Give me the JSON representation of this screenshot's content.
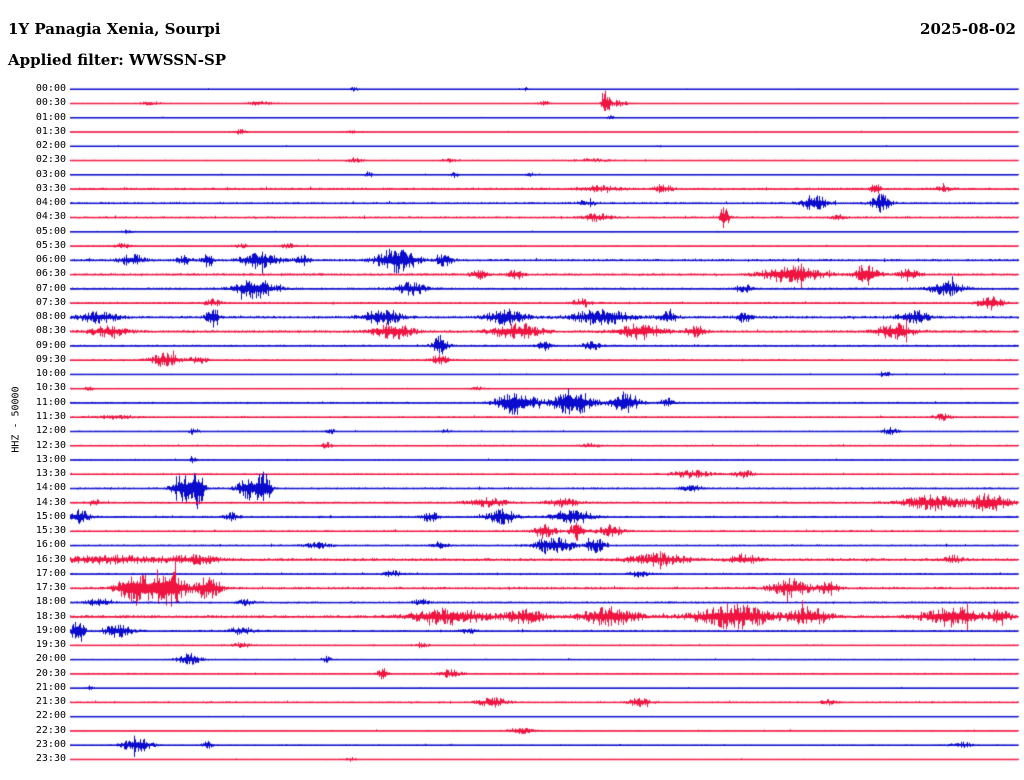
{
  "chart_data": {
    "type": "line",
    "subtype": "helicorder-seismogram",
    "title": "1Y Panagia Xenia, Sourpi",
    "date": "2025-08-02",
    "filter_label": "Applied filter: WWSSN-SP",
    "ylabel": "HHZ - 50000",
    "row_minutes": 30,
    "x_range_minutes": [
      0,
      30
    ],
    "grid": false,
    "legend": "none",
    "palette": {
      "blue": "#0b0bcd",
      "red": "#f01441"
    },
    "rows": [
      {
        "t": "00:00",
        "c": "blue",
        "base": 0.5,
        "bursts": [
          [
            0.3,
            0.004,
            2.5
          ],
          [
            0.48,
            0.003,
            2.0
          ]
        ]
      },
      {
        "t": "00:30",
        "c": "red",
        "base": 0.6,
        "bursts": [
          [
            0.085,
            0.01,
            2.0
          ],
          [
            0.2,
            0.015,
            2.0
          ],
          [
            0.5,
            0.006,
            2.5
          ],
          [
            0.565,
            0.004,
            13.0
          ],
          [
            0.578,
            0.01,
            3.0
          ]
        ]
      },
      {
        "t": "01:00",
        "c": "blue",
        "base": 0.5,
        "bursts": [
          [
            0.57,
            0.004,
            2.0
          ]
        ]
      },
      {
        "t": "01:30",
        "c": "red",
        "base": 0.6,
        "bursts": [
          [
            0.18,
            0.008,
            2.5
          ],
          [
            0.3,
            0.01,
            1.5
          ]
        ]
      },
      {
        "t": "02:00",
        "c": "blue",
        "base": 0.5,
        "bursts": [
          [
            0.62,
            0.005,
            1.5
          ]
        ]
      },
      {
        "t": "02:30",
        "c": "red",
        "base": 0.7,
        "bursts": [
          [
            0.3,
            0.008,
            2.5
          ],
          [
            0.4,
            0.008,
            2.0
          ],
          [
            0.55,
            0.02,
            1.5
          ]
        ]
      },
      {
        "t": "03:00",
        "c": "blue",
        "base": 0.6,
        "bursts": [
          [
            0.315,
            0.004,
            3.5
          ],
          [
            0.405,
            0.004,
            3.0
          ],
          [
            0.485,
            0.004,
            2.5
          ]
        ]
      },
      {
        "t": "03:30",
        "c": "red",
        "base": 1.2,
        "bursts": [
          [
            0.56,
            0.02,
            3.0
          ],
          [
            0.625,
            0.01,
            4.0
          ],
          [
            0.85,
            0.005,
            7.0
          ],
          [
            0.92,
            0.01,
            2.5
          ]
        ]
      },
      {
        "t": "04:00",
        "c": "blue",
        "base": 1.1,
        "bursts": [
          [
            0.545,
            0.01,
            2.5
          ],
          [
            0.785,
            0.012,
            9.0
          ],
          [
            0.855,
            0.01,
            9.0
          ]
        ]
      },
      {
        "t": "04:30",
        "c": "red",
        "base": 1.0,
        "bursts": [
          [
            0.555,
            0.015,
            4.0
          ],
          [
            0.69,
            0.005,
            11.0
          ],
          [
            0.81,
            0.008,
            2.5
          ]
        ]
      },
      {
        "t": "05:00",
        "c": "blue",
        "base": 0.55,
        "bursts": [
          [
            0.06,
            0.006,
            2.0
          ]
        ]
      },
      {
        "t": "05:30",
        "c": "red",
        "base": 0.7,
        "bursts": [
          [
            0.055,
            0.008,
            3.0
          ],
          [
            0.18,
            0.008,
            2.0
          ],
          [
            0.23,
            0.008,
            2.5
          ]
        ]
      },
      {
        "t": "06:00",
        "c": "blue",
        "base": 1.2,
        "bursts": [
          [
            0.065,
            0.012,
            6.0
          ],
          [
            0.12,
            0.008,
            4.0
          ],
          [
            0.145,
            0.006,
            8.0
          ],
          [
            0.2,
            0.018,
            9.0
          ],
          [
            0.245,
            0.008,
            5.0
          ],
          [
            0.345,
            0.02,
            13.0
          ],
          [
            0.395,
            0.008,
            6.0
          ]
        ]
      },
      {
        "t": "06:30",
        "c": "red",
        "base": 1.2,
        "bursts": [
          [
            0.43,
            0.008,
            5.0
          ],
          [
            0.47,
            0.008,
            5.0
          ],
          [
            0.76,
            0.03,
            9.0
          ],
          [
            0.84,
            0.012,
            11.0
          ],
          [
            0.885,
            0.01,
            7.0
          ]
        ]
      },
      {
        "t": "07:00",
        "c": "blue",
        "base": 1.1,
        "bursts": [
          [
            0.195,
            0.02,
            10.0
          ],
          [
            0.36,
            0.015,
            7.0
          ],
          [
            0.71,
            0.008,
            4.0
          ],
          [
            0.925,
            0.018,
            7.0
          ]
        ]
      },
      {
        "t": "07:30",
        "c": "red",
        "base": 1.0,
        "bursts": [
          [
            0.15,
            0.008,
            4.0
          ],
          [
            0.54,
            0.01,
            4.0
          ],
          [
            0.97,
            0.012,
            8.0
          ]
        ]
      },
      {
        "t": "08:00",
        "c": "blue",
        "base": 1.3,
        "bursts": [
          [
            0.03,
            0.02,
            6.0
          ],
          [
            0.15,
            0.006,
            12.0
          ],
          [
            0.33,
            0.02,
            8.0
          ],
          [
            0.46,
            0.02,
            8.0
          ],
          [
            0.56,
            0.03,
            8.0
          ],
          [
            0.63,
            0.01,
            6.0
          ],
          [
            0.71,
            0.008,
            5.0
          ],
          [
            0.89,
            0.015,
            7.0
          ]
        ]
      },
      {
        "t": "08:30",
        "c": "red",
        "base": 1.3,
        "bursts": [
          [
            0.04,
            0.02,
            5.0
          ],
          [
            0.34,
            0.02,
            8.0
          ],
          [
            0.47,
            0.025,
            8.0
          ],
          [
            0.6,
            0.025,
            8.0
          ],
          [
            0.66,
            0.01,
            6.0
          ],
          [
            0.87,
            0.02,
            8.0
          ]
        ]
      },
      {
        "t": "09:00",
        "c": "blue",
        "base": 1.0,
        "bursts": [
          [
            0.39,
            0.008,
            10.0
          ],
          [
            0.5,
            0.008,
            5.0
          ],
          [
            0.55,
            0.01,
            4.0
          ]
        ]
      },
      {
        "t": "09:30",
        "c": "red",
        "base": 0.9,
        "bursts": [
          [
            0.1,
            0.015,
            7.0
          ],
          [
            0.135,
            0.008,
            5.0
          ],
          [
            0.39,
            0.01,
            5.0
          ]
        ]
      },
      {
        "t": "10:00",
        "c": "blue",
        "base": 0.6,
        "bursts": [
          [
            0.86,
            0.006,
            2.5
          ]
        ]
      },
      {
        "t": "10:30",
        "c": "red",
        "base": 0.6,
        "bursts": [
          [
            0.02,
            0.005,
            2.5
          ],
          [
            0.43,
            0.008,
            1.5
          ]
        ]
      },
      {
        "t": "11:00",
        "c": "blue",
        "base": 0.9,
        "bursts": [
          [
            0.47,
            0.02,
            12.0
          ],
          [
            0.53,
            0.02,
            14.0
          ],
          [
            0.585,
            0.015,
            11.0
          ],
          [
            0.63,
            0.008,
            5.0
          ]
        ]
      },
      {
        "t": "11:30",
        "c": "red",
        "base": 0.9,
        "bursts": [
          [
            0.05,
            0.02,
            2.0
          ],
          [
            0.92,
            0.01,
            3.0
          ]
        ]
      },
      {
        "t": "12:00",
        "c": "blue",
        "base": 0.7,
        "bursts": [
          [
            0.13,
            0.006,
            3.0
          ],
          [
            0.275,
            0.005,
            2.5
          ],
          [
            0.395,
            0.005,
            2.5
          ],
          [
            0.865,
            0.008,
            4.0
          ]
        ]
      },
      {
        "t": "12:30",
        "c": "red",
        "base": 0.8,
        "bursts": [
          [
            0.27,
            0.006,
            3.0
          ],
          [
            0.55,
            0.01,
            2.0
          ]
        ]
      },
      {
        "t": "13:00",
        "c": "blue",
        "base": 0.7,
        "bursts": [
          [
            0.13,
            0.005,
            3.0
          ]
        ]
      },
      {
        "t": "13:30",
        "c": "red",
        "base": 0.9,
        "bursts": [
          [
            0.655,
            0.02,
            4.0
          ],
          [
            0.71,
            0.01,
            4.0
          ]
        ]
      },
      {
        "t": "14:00",
        "c": "blue",
        "base": 1.0,
        "bursts": [
          [
            0.12,
            0.012,
            14.0
          ],
          [
            0.135,
            0.006,
            18.0
          ],
          [
            0.19,
            0.012,
            13.0
          ],
          [
            0.205,
            0.006,
            16.0
          ],
          [
            0.655,
            0.01,
            4.0
          ]
        ]
      },
      {
        "t": "14:30",
        "c": "red",
        "base": 1.0,
        "bursts": [
          [
            0.025,
            0.005,
            4.0
          ],
          [
            0.44,
            0.02,
            5.0
          ],
          [
            0.52,
            0.015,
            5.0
          ],
          [
            0.91,
            0.03,
            8.0
          ],
          [
            0.97,
            0.02,
            9.0
          ]
        ]
      },
      {
        "t": "15:00",
        "c": "blue",
        "base": 1.0,
        "bursts": [
          [
            0.01,
            0.01,
            7.0
          ],
          [
            0.17,
            0.008,
            4.0
          ],
          [
            0.38,
            0.008,
            5.0
          ],
          [
            0.455,
            0.015,
            8.0
          ],
          [
            0.53,
            0.02,
            8.0
          ]
        ]
      },
      {
        "t": "15:30",
        "c": "red",
        "base": 1.0,
        "bursts": [
          [
            0.5,
            0.012,
            7.0
          ],
          [
            0.535,
            0.008,
            10.0
          ],
          [
            0.57,
            0.012,
            6.0
          ]
        ]
      },
      {
        "t": "16:00",
        "c": "blue",
        "base": 0.9,
        "bursts": [
          [
            0.26,
            0.015,
            3.0
          ],
          [
            0.39,
            0.008,
            4.0
          ],
          [
            0.51,
            0.02,
            9.0
          ],
          [
            0.555,
            0.01,
            7.0
          ]
        ]
      },
      {
        "t": "16:30",
        "c": "red",
        "base": 1.4,
        "bursts": [
          [
            0.04,
            0.05,
            4.0
          ],
          [
            0.13,
            0.03,
            4.0
          ],
          [
            0.62,
            0.03,
            6.0
          ],
          [
            0.71,
            0.015,
            5.0
          ],
          [
            0.93,
            0.01,
            4.0
          ]
        ]
      },
      {
        "t": "17:00",
        "c": "blue",
        "base": 0.9,
        "bursts": [
          [
            0.34,
            0.01,
            3.0
          ],
          [
            0.6,
            0.01,
            3.0
          ]
        ]
      },
      {
        "t": "17:30",
        "c": "red",
        "base": 1.3,
        "bursts": [
          [
            0.065,
            0.015,
            16.0
          ],
          [
            0.1,
            0.02,
            20.0
          ],
          [
            0.145,
            0.012,
            12.0
          ],
          [
            0.76,
            0.02,
            9.0
          ],
          [
            0.8,
            0.01,
            7.0
          ]
        ]
      },
      {
        "t": "18:00",
        "c": "blue",
        "base": 1.0,
        "bursts": [
          [
            0.03,
            0.012,
            4.0
          ],
          [
            0.185,
            0.008,
            3.0
          ],
          [
            0.37,
            0.008,
            3.0
          ]
        ]
      },
      {
        "t": "18:30",
        "c": "red",
        "base": 1.5,
        "bursts": [
          [
            0.4,
            0.04,
            8.0
          ],
          [
            0.48,
            0.02,
            7.0
          ],
          [
            0.57,
            0.03,
            9.0
          ],
          [
            0.7,
            0.04,
            12.0
          ],
          [
            0.78,
            0.02,
            9.0
          ],
          [
            0.93,
            0.03,
            10.0
          ],
          [
            0.98,
            0.01,
            8.0
          ]
        ]
      },
      {
        "t": "19:00",
        "c": "blue",
        "base": 1.0,
        "bursts": [
          [
            0.008,
            0.006,
            16.0
          ],
          [
            0.05,
            0.015,
            7.0
          ],
          [
            0.18,
            0.012,
            4.0
          ],
          [
            0.42,
            0.008,
            3.0
          ]
        ]
      },
      {
        "t": "19:30",
        "c": "red",
        "base": 0.8,
        "bursts": [
          [
            0.18,
            0.01,
            2.5
          ],
          [
            0.37,
            0.008,
            2.0
          ]
        ]
      },
      {
        "t": "20:00",
        "c": "blue",
        "base": 0.7,
        "bursts": [
          [
            0.125,
            0.012,
            6.0
          ],
          [
            0.27,
            0.005,
            3.0
          ]
        ]
      },
      {
        "t": "20:30",
        "c": "red",
        "base": 0.8,
        "bursts": [
          [
            0.33,
            0.005,
            8.0
          ],
          [
            0.4,
            0.012,
            4.0
          ]
        ]
      },
      {
        "t": "21:00",
        "c": "blue",
        "base": 0.6,
        "bursts": [
          [
            0.02,
            0.004,
            2.0
          ]
        ]
      },
      {
        "t": "21:30",
        "c": "red",
        "base": 0.9,
        "bursts": [
          [
            0.445,
            0.015,
            5.0
          ],
          [
            0.6,
            0.01,
            5.0
          ],
          [
            0.8,
            0.008,
            2.5
          ]
        ]
      },
      {
        "t": "22:00",
        "c": "blue",
        "base": 0.5,
        "bursts": []
      },
      {
        "t": "22:30",
        "c": "red",
        "base": 0.7,
        "bursts": [
          [
            0.475,
            0.012,
            4.0
          ]
        ]
      },
      {
        "t": "23:00",
        "c": "blue",
        "base": 0.7,
        "bursts": [
          [
            0.07,
            0.015,
            8.0
          ],
          [
            0.145,
            0.006,
            4.0
          ],
          [
            0.94,
            0.012,
            3.0
          ]
        ]
      },
      {
        "t": "23:30",
        "c": "red",
        "base": 0.6,
        "bursts": [
          [
            0.295,
            0.006,
            2.0
          ]
        ]
      }
    ]
  }
}
